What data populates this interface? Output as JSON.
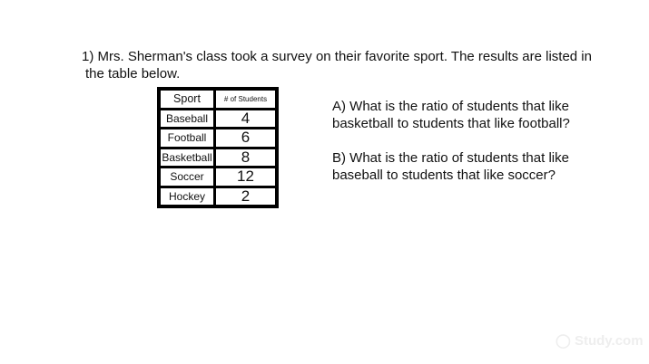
{
  "problem": {
    "line1": "1) Mrs. Sherman's class took a survey on their favorite sport.  The results are listed in",
    "line2": "the table below."
  },
  "table": {
    "headers": [
      "Sport",
      "# of Students"
    ],
    "rows": [
      [
        "Baseball",
        "4"
      ],
      [
        "Football",
        "6"
      ],
      [
        "Basketball",
        "8"
      ],
      [
        "Soccer",
        "12"
      ],
      [
        "Hockey",
        "2"
      ]
    ]
  },
  "questions": [
    {
      "line1": "A) What is the ratio of students that like",
      "line2": "basketball to students that like football?"
    },
    {
      "line1": "B) What is the ratio of students that like",
      "line2": "baseball to students that like soccer?"
    }
  ],
  "watermark": "Study.com"
}
